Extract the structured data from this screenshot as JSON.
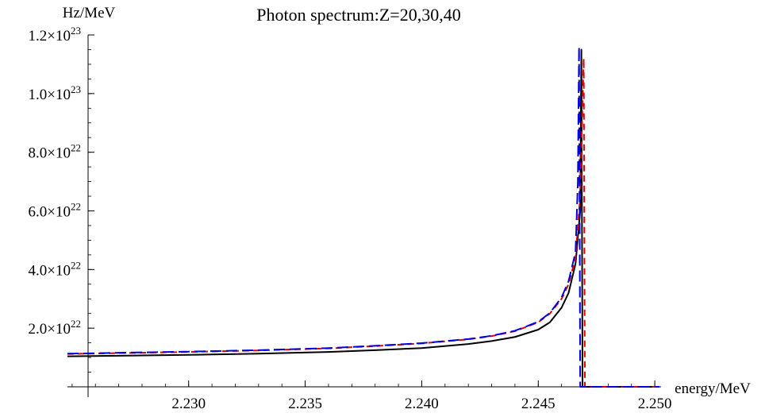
{
  "chart_data": {
    "type": "line",
    "title": "Photon spectrum:Z=20,30,40",
    "xlabel": "energy/MeV",
    "ylabel": "Hz/MeV",
    "xlim": [
      2.2248,
      2.2502
    ],
    "ylim": [
      0,
      1.2e+23
    ],
    "x_ticks": [
      {
        "value": 2.23,
        "label": "2.230"
      },
      {
        "value": 2.235,
        "label": "2.235"
      },
      {
        "value": 2.24,
        "label": "2.240"
      },
      {
        "value": 2.245,
        "label": "2.245"
      },
      {
        "value": 2.25,
        "label": "2.250"
      }
    ],
    "y_ticks": [
      {
        "value": 2e+22,
        "mantissa": "2.0",
        "exp": "22"
      },
      {
        "value": 4e+22,
        "mantissa": "4.0",
        "exp": "22"
      },
      {
        "value": 6e+22,
        "mantissa": "6.0",
        "exp": "22"
      },
      {
        "value": 8e+22,
        "mantissa": "8.0",
        "exp": "22"
      },
      {
        "value": 1e+23,
        "mantissa": "1.0",
        "exp": "23"
      },
      {
        "value": 1.2e+23,
        "mantissa": "1.2",
        "exp": "23"
      }
    ],
    "x_minor_step": 0.001,
    "y_minor_step": 5e+21,
    "grid": false,
    "series": [
      {
        "color": "#000000",
        "dash": "solid",
        "x": [
          2.2248,
          2.227,
          2.23,
          2.233,
          2.236,
          2.238,
          2.24,
          2.242,
          2.243,
          2.244,
          2.245,
          2.2455,
          2.246,
          2.2463,
          2.2466,
          2.2468,
          2.24685,
          2.2469,
          2.2502
        ],
        "y": [
          1.04e+22,
          1.06e+22,
          1.09e+22,
          1.13e+22,
          1.19e+22,
          1.25e+22,
          1.32e+22,
          1.46e+22,
          1.56e+22,
          1.7e+22,
          1.95e+22,
          2.2e+22,
          2.7e+22,
          3.2e+22,
          4.2e+22,
          6e+22,
          1.15e+23,
          0,
          0
        ]
      },
      {
        "color": "#dd0000",
        "dash": "dashed",
        "x": [
          2.2248,
          2.227,
          2.23,
          2.233,
          2.236,
          2.238,
          2.24,
          2.242,
          2.243,
          2.244,
          2.245,
          2.2455,
          2.246,
          2.2463,
          2.2466,
          2.2468,
          2.24695,
          2.247,
          2.2502
        ],
        "y": [
          1.12e+22,
          1.15e+22,
          1.19e+22,
          1.24e+22,
          1.31e+22,
          1.39e+22,
          1.48e+22,
          1.62e+22,
          1.73e+22,
          1.9e+22,
          2.2e+22,
          2.5e+22,
          3e+22,
          3.5e+22,
          4.4e+22,
          6.5e+22,
          1.12e+23,
          0,
          0
        ]
      },
      {
        "color": "#0000dd",
        "dash": "longdash",
        "x": [
          2.2248,
          2.227,
          2.23,
          2.233,
          2.236,
          2.238,
          2.24,
          2.242,
          2.243,
          2.244,
          2.245,
          2.2455,
          2.246,
          2.2463,
          2.2466,
          2.2467,
          2.24675,
          2.2468,
          2.2502
        ],
        "y": [
          1.13e+22,
          1.16e+22,
          1.2e+22,
          1.25e+22,
          1.32e+22,
          1.4e+22,
          1.49e+22,
          1.63e+22,
          1.74e+22,
          1.91e+22,
          2.22e+22,
          2.52e+22,
          3.05e+22,
          3.6e+22,
          4.6e+22,
          7e+22,
          1.16e+23,
          0,
          0
        ]
      }
    ]
  }
}
